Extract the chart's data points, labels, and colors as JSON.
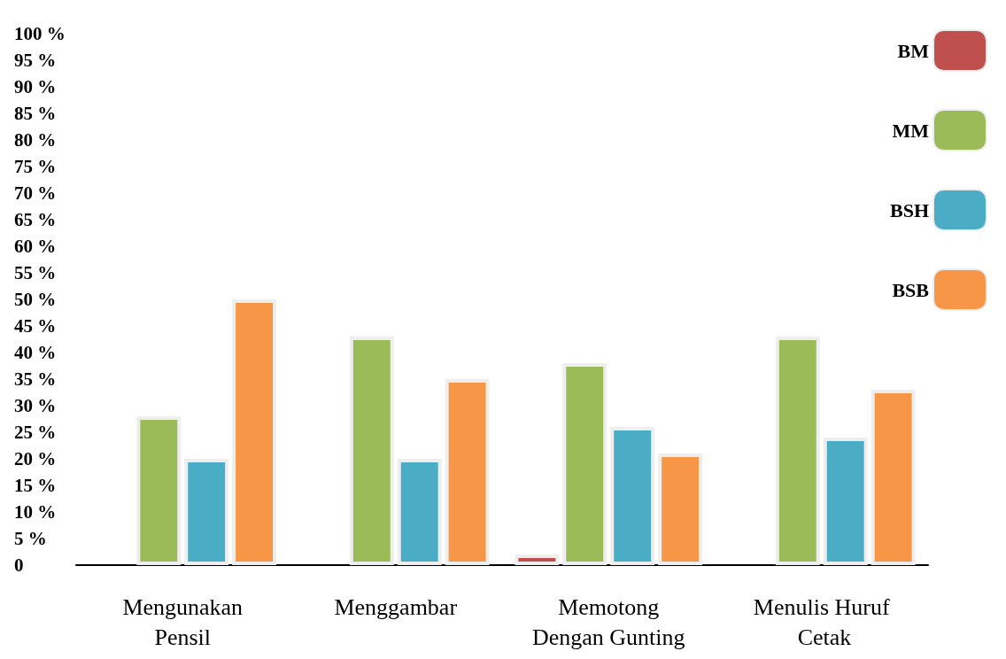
{
  "chart_data": {
    "type": "bar",
    "categories": [
      "Mengunakan\nPensil",
      "Menggambar",
      "Memotong\nDengan Gunting",
      "Menulis Huruf\n Cetak"
    ],
    "series": [
      {
        "name": "BM",
        "color": "#c0504d",
        "values": [
          0,
          0,
          2,
          0
        ]
      },
      {
        "name": "MM",
        "color": "#9bbb59",
        "values": [
          28,
          43,
          38,
          43
        ]
      },
      {
        "name": "BSH",
        "color": "#4bacc6",
        "values": [
          20,
          20,
          26,
          24
        ]
      },
      {
        "name": "BSB",
        "color": "#f79646",
        "values": [
          50,
          35,
          21,
          33
        ]
      }
    ],
    "ylim": [
      0,
      100
    ],
    "yticks": [
      {
        "value": 0,
        "label": "0"
      },
      {
        "value": 5,
        "label": "5 %"
      },
      {
        "value": 10,
        "label": "10 %"
      },
      {
        "value": 15,
        "label": "15 %"
      },
      {
        "value": 20,
        "label": "20 %"
      },
      {
        "value": 25,
        "label": "25 %"
      },
      {
        "value": 30,
        "label": "30 %"
      },
      {
        "value": 35,
        "label": "35 %"
      },
      {
        "value": 40,
        "label": "40 %"
      },
      {
        "value": 45,
        "label": "45 %"
      },
      {
        "value": 50,
        "label": "50 %"
      },
      {
        "value": 55,
        "label": "55 %"
      },
      {
        "value": 60,
        "label": "60 %"
      },
      {
        "value": 65,
        "label": "65 %"
      },
      {
        "value": 70,
        "label": "70 %"
      },
      {
        "value": 75,
        "label": "75 %"
      },
      {
        "value": 80,
        "label": "80 %"
      },
      {
        "value": 85,
        "label": "85 %"
      },
      {
        "value": 90,
        "label": "90 %"
      },
      {
        "value": 95,
        "label": "95 %"
      },
      {
        "value": 100,
        "label": "100 %"
      }
    ],
    "grid": false,
    "legend": "top right"
  }
}
